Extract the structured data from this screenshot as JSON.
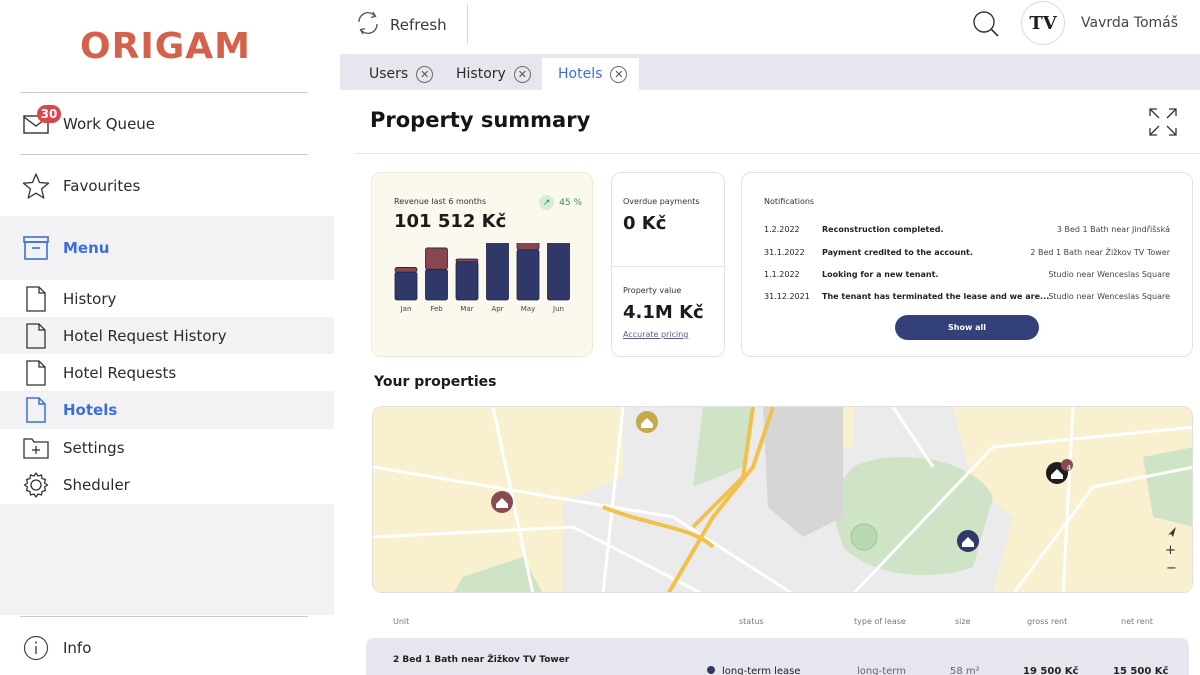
{
  "app": {
    "logo": "ORIGAM"
  },
  "sidebar": {
    "work_queue": {
      "label": "Work Queue",
      "badge": "30"
    },
    "favourites": "Favourites",
    "menu": "Menu",
    "items": [
      {
        "label": "History",
        "icon": "document-icon"
      },
      {
        "label": "Hotel Request History",
        "icon": "document-icon"
      },
      {
        "label": "Hotel Requests",
        "icon": "document-icon"
      },
      {
        "label": "Hotels",
        "icon": "document-icon",
        "active": true
      },
      {
        "label": "Settings",
        "icon": "folder-plus-icon"
      },
      {
        "label": "Sheduler",
        "icon": "gear-icon"
      }
    ],
    "info": "Info",
    "accent": "#3c6fd9"
  },
  "topbar": {
    "refresh": "Refresh",
    "avatar_initials": "TV",
    "user_name": "Vavrda Tomáš"
  },
  "tabs": [
    {
      "label": "Users"
    },
    {
      "label": "History"
    },
    {
      "label": "Hotels",
      "selected": true
    }
  ],
  "page": {
    "title": "Property summary"
  },
  "revenue": {
    "label": "Revenue last 6 months",
    "value": "101 512 Kč",
    "trend": "45 %"
  },
  "chart_data": {
    "type": "bar",
    "categories": [
      "Jan",
      "Feb",
      "Mar",
      "Apr",
      "May",
      "Jun"
    ],
    "series": [
      {
        "values": [
          30,
          33,
          41,
          73,
          54,
          68
        ]
      },
      {
        "values": [
          5,
          23,
          3,
          0,
          10,
          17
        ]
      }
    ],
    "colors": [
      "#2f3868",
      "#874650"
    ]
  },
  "overdue": {
    "label": "Overdue payments",
    "value": "0 Kč"
  },
  "property_value": {
    "label": "Property value",
    "value": "4.1M Kč",
    "link": "Accurate pricing"
  },
  "notifications": {
    "title": "Notifications",
    "rows": [
      {
        "date": "1.2.2022",
        "text": "Reconstruction completed.",
        "property": "3 Bed 1 Bath near Jindřišská"
      },
      {
        "date": "31.1.2022",
        "text": "Payment credited to the account.",
        "property": "2 Bed 1 Bath near Žižkov TV Tower"
      },
      {
        "date": "1.1.2022",
        "text": "Looking for a new tenant.",
        "property": "Studio near Wenceslas Square"
      },
      {
        "date": "31.12.2021",
        "text": "The tenant has terminated the lease and we are...",
        "property": "Studio near Wenceslas Square"
      }
    ],
    "show_all": "Show all"
  },
  "properties": {
    "title": "Your properties",
    "map_cluster": "4",
    "columns": [
      "Unit",
      "status",
      "type of lease",
      "size",
      "gross rent",
      "net rent"
    ],
    "rows": [
      {
        "unit": "2 Bed 1 Bath near Žižkov TV Tower",
        "status": "long-term lease",
        "type": "long-term",
        "size": "58 m²",
        "gross": "19 500 Kč",
        "net": "15 500 Kč"
      }
    ]
  }
}
